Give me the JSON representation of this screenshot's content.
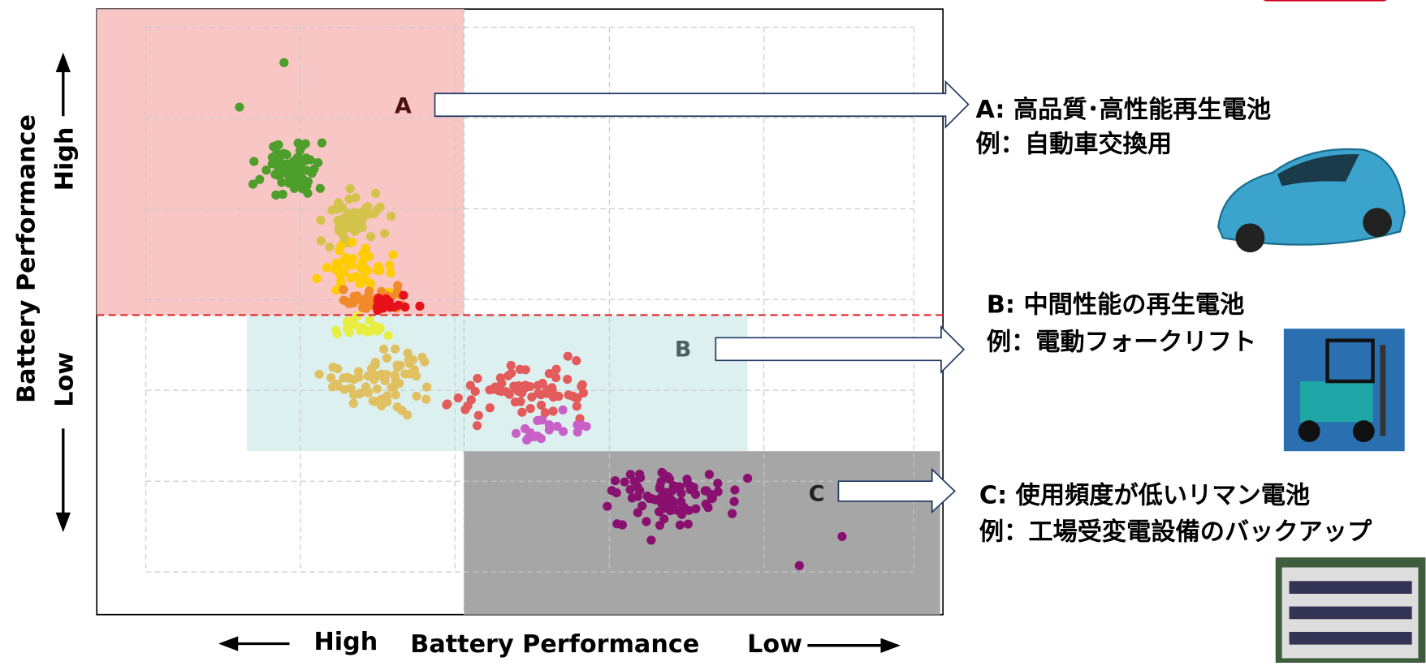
{
  "y_axis": {
    "title": "Battery Performance",
    "high": "High",
    "low": "Low"
  },
  "x_axis": {
    "title": "Battery Performance",
    "high": "High",
    "low": "Low"
  },
  "groups": [
    {
      "label": "A",
      "title": "A: 高品質･高性能再生電池",
      "example": "例：自動車交換用"
    },
    {
      "label": "B",
      "title": "B: 中間性能の再生電池",
      "example": "例：電動フォークリフト"
    },
    {
      "label": "C",
      "title": "C: 使用頻度が低いリマン電池",
      "example": "例：工場受変電設備のバックアップ"
    }
  ]
}
